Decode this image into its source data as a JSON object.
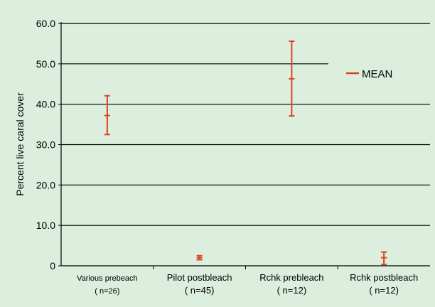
{
  "chart_data": {
    "type": "error-bar",
    "title": "",
    "xlabel": "",
    "ylabel": "Percent live caral cover",
    "ylim": [
      0,
      60
    ],
    "yticks": [
      "0",
      "10.0",
      "20.0",
      "30.0",
      "40.0",
      "50.0",
      "60.0"
    ],
    "grid": true,
    "legend": {
      "label": "MEAN",
      "placement": "top-right"
    },
    "colors": {
      "series": "#e0401e",
      "background": "#dceedd",
      "axis": "#000000"
    },
    "categories": [
      {
        "label": "Various prebeach",
        "n": "( n=26)",
        "mean": 37.2,
        "low": 32.5,
        "high": 42.1
      },
      {
        "label": "Pilot postbleach",
        "n": "( n=45)",
        "mean": 2.0,
        "low": 1.5,
        "high": 2.5
      },
      {
        "label": "Rchk prebleach",
        "n": "( n=12)",
        "mean": 46.3,
        "low": 37.1,
        "high": 55.6
      },
      {
        "label": "Rchk postbleach",
        "n": "( n=12)",
        "mean": 2.0,
        "low": 0.3,
        "high": 3.4
      }
    ]
  }
}
